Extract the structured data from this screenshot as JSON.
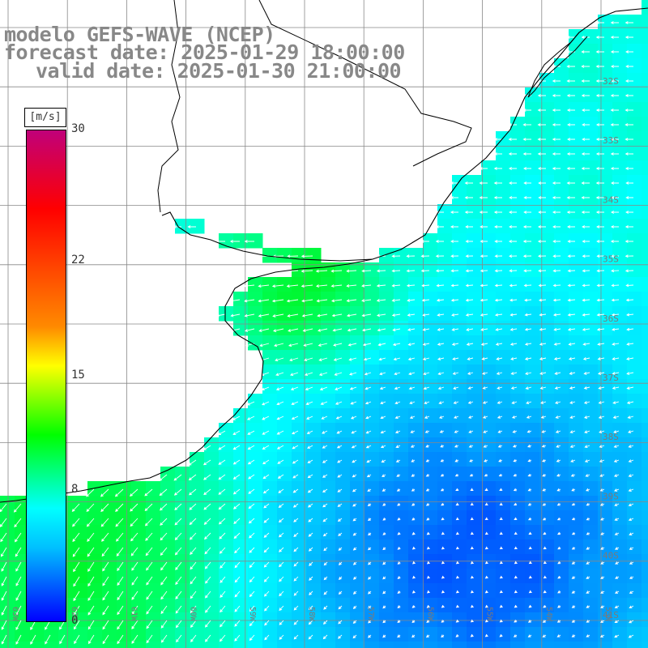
{
  "title": {
    "model": "modelo GEFS-WAVE (NCEP)",
    "forecast": "forecast date: 2025-01-29 18:00:00",
    "valid": "valid date: 2025-01-30 21:00:00"
  },
  "colorbar": {
    "units": "[m/s]",
    "ticks": [
      {
        "value": 30,
        "label": "30"
      },
      {
        "value": 22,
        "label": "22"
      },
      {
        "value": 15,
        "label": "15"
      },
      {
        "value": 8,
        "label": "8"
      },
      {
        "value": 0,
        "label": "0"
      }
    ],
    "range": [
      0,
      30
    ]
  },
  "map": {
    "variable": "wind speed",
    "lat_labels": [
      "32S",
      "33S",
      "34S",
      "35S",
      "36S",
      "37S",
      "38S",
      "39S",
      "40S",
      "41S"
    ],
    "lon_labels": [
      "63W",
      "62W",
      "61W",
      "60W",
      "59W",
      "58W",
      "57W",
      "56W",
      "55W",
      "54W",
      "53W"
    ],
    "colors": {
      "land": "#ffffff",
      "coast": "#000000",
      "grid": "#888888",
      "arrow": "#ffffff"
    }
  }
}
